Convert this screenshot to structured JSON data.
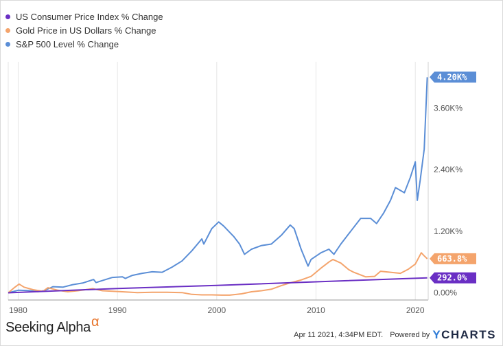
{
  "legend": [
    {
      "label": "US Consumer Price Index % Change",
      "color": "#6a2fc4"
    },
    {
      "label": "Gold Price in US Dollars % Change",
      "color": "#f4a46c"
    },
    {
      "label": "S&P 500 Level % Change",
      "color": "#5b8ed6"
    }
  ],
  "footer": {
    "brand": "Seeking Alpha",
    "brand_alpha": "α",
    "timestamp": "Apr 11 2021, 4:34PM EDT.",
    "powered_by": "Powered by",
    "ycharts_y": "Y",
    "ycharts_rest": "CHARTS"
  },
  "chart_data": {
    "type": "line",
    "x_axis": {
      "ticks": [
        1980,
        1990,
        2000,
        2010,
        2020
      ],
      "labels": [
        "1980",
        "1990",
        "2000",
        "2010",
        "2020"
      ],
      "range": [
        1979,
        2021.3
      ]
    },
    "y_axis": {
      "ticks": [
        0,
        1200,
        2400,
        3600
      ],
      "labels": [
        "0.00%",
        "1.20K%",
        "2.40K%",
        "3.60K%"
      ],
      "range": [
        -140,
        4500
      ],
      "position": "right",
      "unit": "%"
    },
    "grid": {
      "vertical": true,
      "horizontal": false
    },
    "legend_position": "top-left",
    "series": [
      {
        "name": "S&P 500 Level % Change",
        "color": "#5b8ed6",
        "end_label": "4.20K%",
        "x": [
          1979.0,
          1980,
          1981,
          1982,
          1982.6,
          1983.5,
          1984.5,
          1985.5,
          1986.5,
          1987.6,
          1987.85,
          1988.5,
          1989.5,
          1990.5,
          1990.8,
          1991.5,
          1992.5,
          1993.5,
          1994.5,
          1995.5,
          1996.5,
          1997.5,
          1998.5,
          1998.7,
          1999.5,
          2000.2,
          2000.7,
          2001.7,
          2002.3,
          2002.8,
          2003.5,
          2004.5,
          2005.5,
          2006.5,
          2007.4,
          2007.8,
          2008.5,
          2009.2,
          2009.5,
          2010.5,
          2011.3,
          2011.8,
          2012.5,
          2013.5,
          2014.5,
          2015.5,
          2016.1,
          2016.8,
          2017.5,
          2018.0,
          2018.9,
          2019.5,
          2020.0,
          2020.2,
          2020.5,
          2020.9,
          2021.2
        ],
        "y": [
          0,
          50,
          45,
          25,
          40,
          120,
          110,
          160,
          190,
          260,
          200,
          240,
          300,
          310,
          280,
          340,
          380,
          410,
          400,
          500,
          620,
          820,
          1050,
          950,
          1250,
          1380,
          1300,
          1100,
          950,
          750,
          850,
          920,
          950,
          1120,
          1320,
          1250,
          850,
          520,
          650,
          780,
          850,
          750,
          950,
          1200,
          1450,
          1450,
          1350,
          1550,
          1800,
          2050,
          1950,
          2250,
          2550,
          1800,
          2200,
          2800,
          4200
        ]
      },
      {
        "name": "Gold Price in US Dollars % Change",
        "color": "#f4a46c",
        "end_label": "663.8%",
        "x": [
          1979.0,
          1979.6,
          1980.1,
          1980.6,
          1981.5,
          1982.5,
          1983.0,
          1984.0,
          1985.0,
          1986.0,
          1987.5,
          1988.5,
          1989.5,
          1990.5,
          1992,
          1993.5,
          1995,
          1996.5,
          1997.5,
          1998.5,
          1999.5,
          2000.5,
          2001.3,
          2002.5,
          2003.5,
          2004.5,
          2005.5,
          2006.5,
          2007.5,
          2008.5,
          2009.5,
          2010.5,
          2011.3,
          2011.7,
          2012.5,
          2013.3,
          2013.8,
          2015.0,
          2015.9,
          2016.5,
          2017.5,
          2018.5,
          2019.3,
          2020.0,
          2020.6,
          2020.9,
          2021.2
        ],
        "y": [
          0,
          100,
          170,
          110,
          60,
          30,
          100,
          50,
          20,
          40,
          80,
          40,
          30,
          20,
          5,
          10,
          10,
          5,
          -30,
          -40,
          -40,
          -45,
          -45,
          -20,
          20,
          40,
          70,
          140,
          200,
          250,
          320,
          480,
          600,
          650,
          580,
          450,
          400,
          310,
          320,
          420,
          400,
          380,
          460,
          560,
          780,
          720,
          664
        ]
      },
      {
        "name": "US Consumer Price Index % Change",
        "color": "#6a2fc4",
        "end_label": "292.0%",
        "x": [
          1979.0,
          1990,
          2000,
          2010,
          2021.2
        ],
        "y": [
          0,
          85,
          145,
          215,
          292
        ]
      }
    ]
  }
}
